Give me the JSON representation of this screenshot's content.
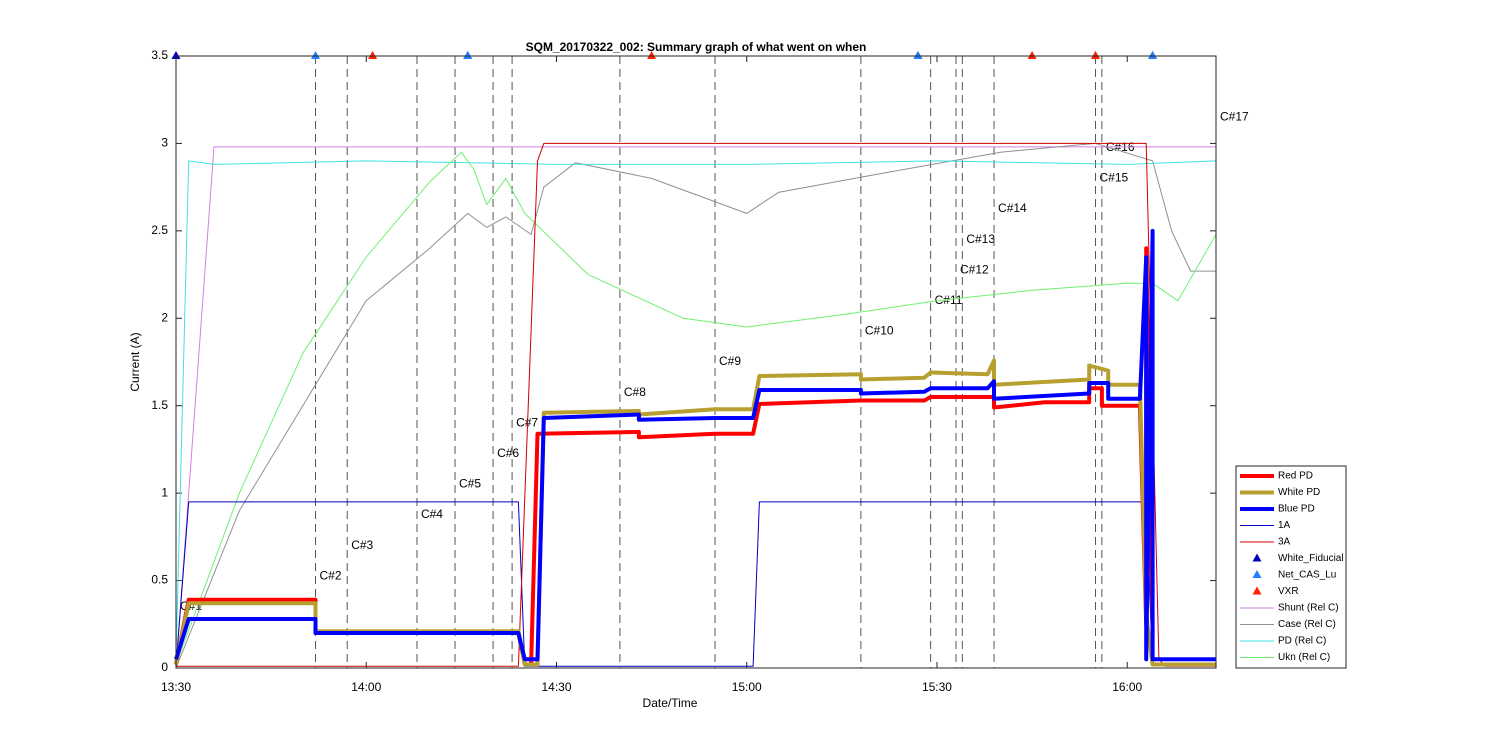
{
  "chart_data": {
    "type": "line",
    "title": "SQM_20170322_002: Summary graph of what went on when",
    "x_label": "Date/Time",
    "y_label": "Current (A)",
    "xlim": [
      "13:30",
      "16:14"
    ],
    "xticks": [
      "13:30",
      "14:00",
      "14:30",
      "15:00",
      "15:30",
      "16:00"
    ],
    "ylim": [
      0,
      3.5
    ],
    "yticks": [
      0,
      0.5,
      1,
      1.5,
      2,
      2.5,
      3,
      3.5
    ],
    "legend": "lower right",
    "events": [
      {
        "time": "13:30",
        "label": "C#1"
      },
      {
        "time": "13:52",
        "label": "C#2"
      },
      {
        "time": "13:57",
        "label": "C#3"
      },
      {
        "time": "14:08",
        "label": "C#4"
      },
      {
        "time": "14:14",
        "label": "C#5"
      },
      {
        "time": "14:20",
        "label": "C#6"
      },
      {
        "time": "14:23",
        "label": "C#7"
      },
      {
        "time": "14:40",
        "label": "C#8"
      },
      {
        "time": "14:55",
        "label": "C#9"
      },
      {
        "time": "15:18",
        "label": "C#10"
      },
      {
        "time": "15:29",
        "label": "C#11"
      },
      {
        "time": "15:33",
        "label": "C#12"
      },
      {
        "time": "15:34",
        "label": "C#13"
      },
      {
        "time": "15:39",
        "label": "C#14"
      },
      {
        "time": "15:55",
        "label": "C#15"
      },
      {
        "time": "15:56",
        "label": "C#16"
      },
      {
        "time": "16:14",
        "label": "C#17"
      }
    ],
    "series": [
      {
        "name": "Red PD",
        "color": "#ff0000",
        "line_width": 4,
        "x": [
          "13:30",
          "13:32",
          "13:52",
          "13:52",
          "14:24",
          "14:25",
          "14:26",
          "14:27",
          "14:43",
          "14:43",
          "14:55",
          "15:01",
          "15:02",
          "15:18",
          "15:28",
          "15:29",
          "15:39",
          "15:39",
          "15:47",
          "15:54",
          "15:54",
          "15:56",
          "15:56",
          "16:02",
          "16:03",
          "16:03",
          "16:04"
        ],
        "values": [
          0.02,
          0.39,
          0.39,
          0.2,
          0.2,
          0.02,
          0.02,
          1.34,
          1.35,
          1.32,
          1.34,
          1.34,
          1.51,
          1.53,
          1.53,
          1.55,
          1.55,
          1.49,
          1.52,
          1.52,
          1.6,
          1.6,
          1.5,
          1.5,
          0.25,
          2.4,
          0.2
        ]
      },
      {
        "name": "White PD",
        "color": "#b8a030",
        "line_width": 4,
        "x": [
          "13:30",
          "13:32",
          "13:52",
          "13:52",
          "14:24",
          "14:25",
          "14:27",
          "14:28",
          "14:43",
          "14:43",
          "14:55",
          "15:01",
          "15:02",
          "15:18",
          "15:18",
          "15:28",
          "15:29",
          "15:38",
          "15:39",
          "15:39",
          "15:54",
          "15:54",
          "15:57",
          "15:57",
          "16:02",
          "16:03",
          "16:04",
          "16:14"
        ],
        "values": [
          0.02,
          0.37,
          0.37,
          0.21,
          0.21,
          0.02,
          0.02,
          1.46,
          1.47,
          1.45,
          1.48,
          1.48,
          1.67,
          1.68,
          1.65,
          1.66,
          1.69,
          1.68,
          1.76,
          1.62,
          1.65,
          1.73,
          1.7,
          1.62,
          1.62,
          0.3,
          0.02,
          0.02
        ]
      },
      {
        "name": "Blue PD",
        "color": "#0000ff",
        "line_width": 4,
        "x": [
          "13:30",
          "13:32",
          "13:52",
          "13:52",
          "14:24",
          "14:25",
          "14:27",
          "14:28",
          "14:43",
          "14:43",
          "14:55",
          "15:01",
          "15:02",
          "15:18",
          "15:18",
          "15:28",
          "15:29",
          "15:38",
          "15:39",
          "15:39",
          "15:54",
          "15:54",
          "15:57",
          "15:57",
          "16:02",
          "16:03",
          "16:03",
          "16:04",
          "16:04",
          "16:14"
        ],
        "values": [
          0.05,
          0.28,
          0.28,
          0.2,
          0.2,
          0.05,
          0.05,
          1.43,
          1.45,
          1.42,
          1.43,
          1.43,
          1.59,
          1.59,
          1.57,
          1.58,
          1.6,
          1.6,
          1.64,
          1.54,
          1.57,
          1.63,
          1.63,
          1.54,
          1.54,
          2.35,
          0.05,
          2.5,
          0.05,
          0.05
        ]
      },
      {
        "name": "1A",
        "color": "#0000c0",
        "line_width": 1,
        "x": [
          "13:30",
          "13:32",
          "14:24",
          "14:25",
          "15:01",
          "15:02",
          "16:03",
          "16:04"
        ],
        "values": [
          0.01,
          0.95,
          0.95,
          0.01,
          0.01,
          0.95,
          0.95,
          0.01
        ]
      },
      {
        "name": "3A",
        "color": "#d00000",
        "line_width": 1,
        "x": [
          "13:30",
          "14:24",
          "14:27",
          "14:28",
          "16:03",
          "16:05",
          "16:06",
          "16:14"
        ],
        "values": [
          0.01,
          0.01,
          2.9,
          3,
          3,
          0.05,
          0.01,
          0.01
        ]
      },
      {
        "name": "Shunt (Rel C)",
        "color": "#d080e0",
        "line_width": 1,
        "x": [
          "13:30",
          "13:31",
          "13:36",
          "16:14"
        ],
        "values": [
          0,
          0.5,
          2.98,
          2.98
        ]
      },
      {
        "name": "Case (Rel C)",
        "color": "#909090",
        "line_width": 1,
        "x": [
          "13:30",
          "13:40",
          "13:50",
          "14:00",
          "14:10",
          "14:16",
          "14:19",
          "14:22",
          "14:26",
          "14:28",
          "14:33",
          "14:45",
          "15:00",
          "15:05",
          "15:20",
          "15:40",
          "15:55",
          "16:04",
          "16:07",
          "16:10",
          "16:14"
        ],
        "values": [
          0,
          0.9,
          1.5,
          2.1,
          2.4,
          2.6,
          2.52,
          2.58,
          2.48,
          2.75,
          2.89,
          2.8,
          2.6,
          2.72,
          2.82,
          2.95,
          3,
          2.9,
          2.5,
          2.27,
          2.27
        ]
      },
      {
        "name": "PD (Rel C)",
        "color": "#40e0e0",
        "line_width": 1,
        "x": [
          "13:30",
          "13:32",
          "13:36",
          "14:00",
          "14:30",
          "15:00",
          "15:30",
          "16:00",
          "16:14"
        ],
        "values": [
          0.05,
          2.9,
          2.88,
          2.9,
          2.88,
          2.88,
          2.9,
          2.88,
          2.9
        ]
      },
      {
        "name": "Ukn (Rel C)",
        "color": "#70f070",
        "line_width": 1,
        "x": [
          "13:30",
          "13:40",
          "13:50",
          "14:00",
          "14:10",
          "14:15",
          "14:17",
          "14:19",
          "14:22",
          "14:25",
          "14:35",
          "14:50",
          "15:00",
          "15:15",
          "15:30",
          "15:45",
          "16:00",
          "16:04",
          "16:08",
          "16:14"
        ],
        "values": [
          0.02,
          1.0,
          1.8,
          2.35,
          2.78,
          2.95,
          2.85,
          2.65,
          2.8,
          2.6,
          2.25,
          2.0,
          1.95,
          2.02,
          2.1,
          2.16,
          2.2,
          2.2,
          2.1,
          2.48
        ]
      }
    ],
    "markers": [
      {
        "name": "White_Fiducial",
        "color": "#0000c0",
        "x": [
          "13:30",
          "14:16",
          "15:27",
          "16:04"
        ],
        "values": [
          3.5,
          3.5,
          3.5,
          3.5
        ]
      },
      {
        "name": "Net_CAS_Lu",
        "color": "#2080ff",
        "x": [
          "13:52",
          "14:16",
          "15:27",
          "15:55",
          "16:04"
        ],
        "values": [
          3.5,
          3.5,
          3.5,
          3.5,
          3.5
        ]
      },
      {
        "name": "VXR",
        "color": "#ff2000",
        "x": [
          "14:01",
          "14:45",
          "15:45",
          "15:55"
        ],
        "values": [
          3.5,
          3.5,
          3.5,
          3.5
        ]
      }
    ]
  }
}
